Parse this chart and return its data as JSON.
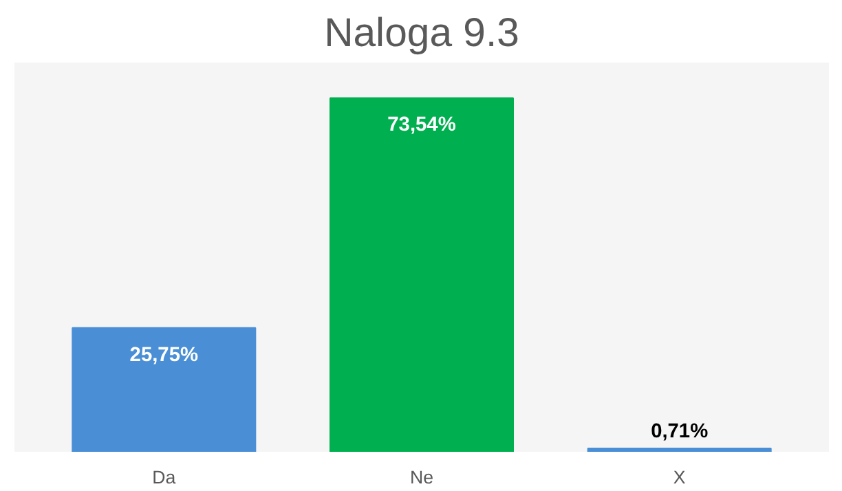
{
  "chart_data": {
    "type": "bar",
    "title": "Naloga 9.3",
    "categories": [
      "Da",
      "Ne",
      "X"
    ],
    "values": [
      25.75,
      73.54,
      0.71
    ],
    "colors": [
      "#4a8fd6",
      "#00b050",
      "#4a8fd6"
    ],
    "value_labels": [
      "25,75%",
      "73,54%",
      "0,71%"
    ],
    "grid": false
  }
}
